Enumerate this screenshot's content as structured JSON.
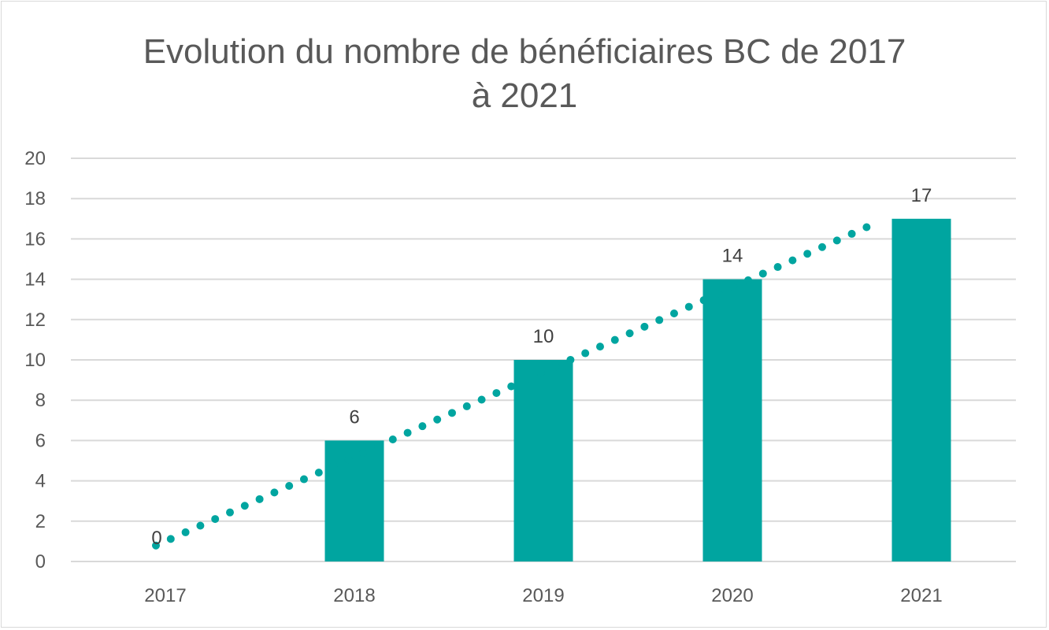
{
  "chart_data": {
    "type": "bar",
    "title_lines": [
      "Evolution du nombre de bénéficiaires BC de 2017",
      "à 2021"
    ],
    "categories": [
      "2017",
      "2018",
      "2019",
      "2020",
      "2021"
    ],
    "values": [
      0,
      6,
      10,
      14,
      17
    ],
    "data_labels": [
      "0",
      "6",
      "10",
      "14",
      "17"
    ],
    "ylim": [
      0,
      20
    ],
    "y_ticks": [
      "0",
      "2",
      "4",
      "6",
      "8",
      "10",
      "12",
      "14",
      "16",
      "18",
      "20"
    ],
    "trendline": {
      "type": "linear",
      "style": "dotted",
      "color": "#00A5A0"
    },
    "bar_color": "#00A5A0",
    "gridlines": true,
    "legend": "none"
  }
}
